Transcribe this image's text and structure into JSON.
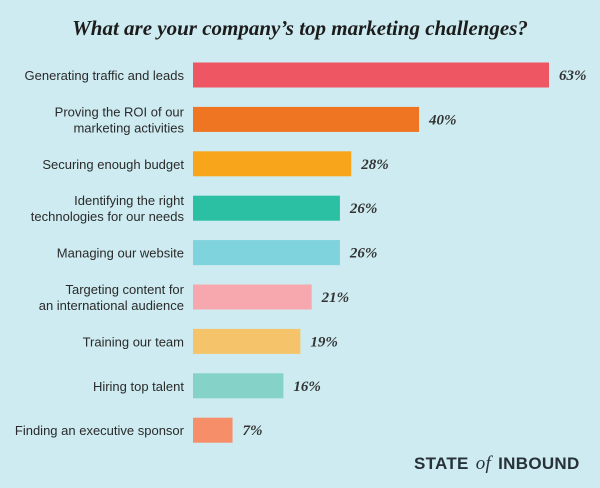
{
  "chart_data": {
    "type": "bar",
    "orientation": "horizontal",
    "title": "What are your company’s top marketing challenges?",
    "categories": [
      "Generating traffic and leads",
      "Proving the ROI of our|marketing activities",
      "Securing enough budget",
      "Identifying the right|technologies for our needs",
      "Managing our website",
      "Targeting content for|an international audience",
      "Training our team",
      "Hiring top talent",
      "Finding an executive sponsor"
    ],
    "values": [
      63,
      40,
      28,
      26,
      26,
      21,
      19,
      16,
      7
    ],
    "value_labels": [
      "63%",
      "40%",
      "28%",
      "26%",
      "26%",
      "21%",
      "19%",
      "16%",
      "7%"
    ],
    "colors": [
      "#ef5663",
      "#f07523",
      "#f8a51c",
      "#2bbfa4",
      "#7fd3dc",
      "#f6a8ae",
      "#f5c46a",
      "#84d2c8",
      "#f68e6a"
    ],
    "xlim": [
      0,
      63
    ],
    "grid": false,
    "legend": "none"
  },
  "brand": {
    "pre": "STATE",
    "mid": "of",
    "post": "INBOUND"
  }
}
